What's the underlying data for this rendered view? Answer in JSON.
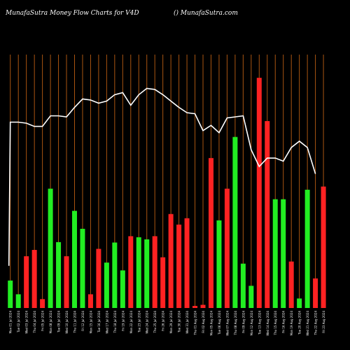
{
  "chart_data": {
    "type": "bar",
    "title": "MunafaSutra  Money Flow  Charts for V4D",
    "brand": "() MunafaSutra.com",
    "colors": {
      "background": "#000000",
      "up": "#22ee22",
      "down": "#ff2222",
      "gridline": "#aa5511",
      "line": "#ffffff"
    },
    "grid": "vertical",
    "bars": [
      {
        "value": 13.0,
        "dir": "up"
      },
      {
        "value": 6.5,
        "dir": "up"
      },
      {
        "value": 24.5,
        "dir": "down"
      },
      {
        "value": 27.5,
        "dir": "down"
      },
      {
        "value": 4.2,
        "dir": "down"
      },
      {
        "value": 56.5,
        "dir": "up"
      },
      {
        "value": 31.2,
        "dir": "up"
      },
      {
        "value": 24.5,
        "dir": "down"
      },
      {
        "value": 46.0,
        "dir": "up"
      },
      {
        "value": 37.5,
        "dir": "up"
      },
      {
        "value": 6.5,
        "dir": "down"
      },
      {
        "value": 28.0,
        "dir": "down"
      },
      {
        "value": 21.5,
        "dir": "up"
      },
      {
        "value": 31.0,
        "dir": "up"
      },
      {
        "value": 17.8,
        "dir": "up"
      },
      {
        "value": 34.0,
        "dir": "down"
      },
      {
        "value": 33.5,
        "dir": "up"
      },
      {
        "value": 32.5,
        "dir": "up"
      },
      {
        "value": 34.0,
        "dir": "down"
      },
      {
        "value": 24.0,
        "dir": "down"
      },
      {
        "value": 44.5,
        "dir": "down"
      },
      {
        "value": 39.5,
        "dir": "down"
      },
      {
        "value": 42.5,
        "dir": "down"
      },
      {
        "value": 1.0,
        "dir": "down"
      },
      {
        "value": 1.5,
        "dir": "down"
      },
      {
        "value": 71.0,
        "dir": "down"
      },
      {
        "value": 41.5,
        "dir": "up"
      },
      {
        "value": 56.5,
        "dir": "down"
      },
      {
        "value": 81.0,
        "dir": "up"
      },
      {
        "value": 21.0,
        "dir": "up"
      },
      {
        "value": 10.5,
        "dir": "up"
      },
      {
        "value": 109.0,
        "dir": "down"
      },
      {
        "value": 88.5,
        "dir": "down"
      },
      {
        "value": 51.5,
        "dir": "up"
      },
      {
        "value": 51.5,
        "dir": "up"
      },
      {
        "value": 22.0,
        "dir": "down"
      },
      {
        "value": 4.5,
        "dir": "up"
      },
      {
        "value": 56.0,
        "dir": "up"
      },
      {
        "value": 14.0,
        "dir": "down"
      },
      {
        "value": 57.5,
        "dir": "down"
      }
    ],
    "line": [
      88.0,
      88.0,
      87.5,
      86.0,
      86.0,
      91.0,
      91.0,
      90.5,
      95.0,
      99.0,
      98.5,
      97.0,
      98.0,
      101.0,
      102.0,
      96.0,
      101.0,
      104.0,
      103.5,
      101.0,
      98.0,
      95.0,
      92.5,
      92.0,
      84.0,
      86.5,
      83.0,
      90.0,
      90.5,
      91.0,
      75.0,
      67.0,
      71.0,
      71.0,
      69.5,
      76.0,
      79.0,
      76.0,
      63.5
    ],
    "line_start": 20.0,
    "ylim": [
      0,
      120
    ],
    "date_labels": [
      "Mon 01 Jul 2024",
      "Tue 02 Jul 2024",
      "Wed 03 Jul 2024",
      "Thu 04 Jul 2024",
      "Fri 05 Jul 2024",
      "Mon 08 Jul 2024",
      "Tue 09 Jul 2024",
      "Wed 10 Jul 2024",
      "Thu 11 Jul 2024",
      "Fri 12 Jul 2024",
      "Mon 15 Jul 2024",
      "Tue 16 Jul 2024",
      "Wed 17 Jul 2024",
      "Thu 18 Jul 2024",
      "Fri 19 Jul 2024",
      "Mon 22 Jul 2024",
      "Tue 23 Jul 2024",
      "Wed 24 Jul 2024",
      "Thu 25 Jul 2024",
      "Fri 26 Jul 2024",
      "Mon 29 Jul 2024",
      "Tue 30 Jul 2024",
      "Wed 31 Jul 2024",
      "Thu 01 Aug 2024",
      "Fri 02 Aug 2024",
      "Mon 05 Aug 2024",
      "Tue 06 Aug 2024",
      "Wed 07 Aug 2024",
      "Thu 08 Aug 2024",
      "Fri 09 Aug 2024",
      "Mon 12 Aug 2024",
      "Tue 13 Aug 2024",
      "Wed 14 Aug 2024",
      "Thu 15 Aug 2024",
      "Fri 16 Aug 2024",
      "Mon 19 Aug 2024",
      "Tue 20 Aug 2024",
      "Wed 21 Aug 2024",
      "Thu 22 Aug 2024",
      "Fri 23 Aug 2024"
    ]
  }
}
